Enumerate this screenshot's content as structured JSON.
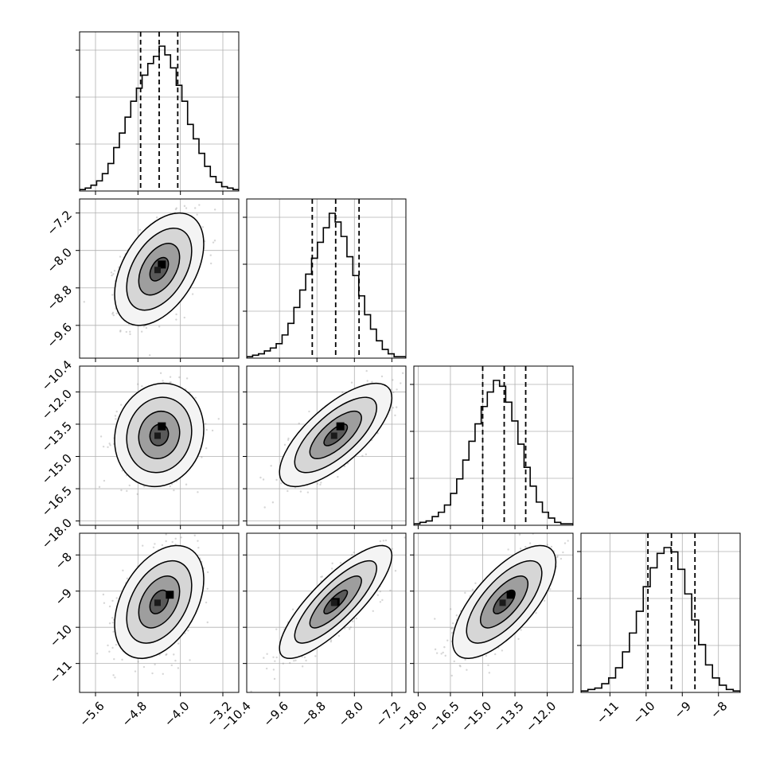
{
  "chart_data": [
    {
      "type": "histogram",
      "panel": "hist-0",
      "x_range": [
        -5.9,
        -2.9
      ],
      "x_ticks": [
        "-5.6",
        "-4.8",
        "-4.0",
        "-3.2"
      ],
      "quantiles": [
        -4.75,
        -4.4,
        -4.05
      ],
      "counts": [
        1,
        2,
        4,
        7,
        12,
        19,
        30,
        40,
        51,
        62,
        71,
        80,
        88,
        93,
        100,
        94,
        85,
        73,
        62,
        46,
        36,
        26,
        17,
        10,
        6,
        3,
        2,
        1
      ],
      "grid": true
    },
    {
      "type": "histogram",
      "panel": "hist-1",
      "x_range": [
        -10.3,
        -6.9
      ],
      "x_ticks": [
        "-10.4",
        "-9.6",
        "-8.8",
        "-8.0",
        "-7.2"
      ],
      "quantiles": [
        -8.9,
        -8.4,
        -7.9
      ],
      "counts": [
        1,
        2,
        3,
        5,
        7,
        10,
        16,
        24,
        35,
        47,
        58,
        69,
        80,
        90,
        100,
        94,
        84,
        70,
        57,
        43,
        30,
        20,
        12,
        6,
        3,
        1,
        1
      ],
      "grid": true
    },
    {
      "type": "histogram",
      "panel": "hist-2",
      "x_range": [
        -18.2,
        -10.8
      ],
      "x_ticks": [
        "-18.0",
        "-16.5",
        "-15.0",
        "-13.5",
        "-12.0"
      ],
      "quantiles": [
        -15.0,
        -14.0,
        -13.0
      ],
      "counts": [
        1,
        2,
        3,
        6,
        9,
        14,
        22,
        32,
        45,
        58,
        70,
        82,
        92,
        100,
        96,
        85,
        72,
        56,
        40,
        27,
        16,
        9,
        5,
        2,
        1,
        1
      ],
      "grid": true
    },
    {
      "type": "histogram",
      "panel": "hist-3",
      "x_range": [
        -11.8,
        -7.4
      ],
      "x_ticks": [
        "-11",
        "-10",
        "-9",
        "-8"
      ],
      "quantiles": [
        -9.95,
        -9.3,
        -8.65
      ],
      "counts": [
        1,
        2,
        3,
        6,
        10,
        17,
        28,
        41,
        56,
        73,
        86,
        96,
        100,
        97,
        85,
        68,
        50,
        33,
        19,
        10,
        5,
        2,
        1
      ],
      "grid": true
    },
    {
      "type": "scatter-contour",
      "panel": "pair-1-0",
      "x_range": [
        -5.9,
        -2.9
      ],
      "y_range": [
        -10.3,
        -6.9
      ],
      "x_ticks": [
        "-5.6",
        "-4.8",
        "-4.0",
        "-3.2"
      ],
      "y_ticks": [
        "-7.2",
        "-8.0",
        "-8.8",
        "-9.6",
        "-10.4"
      ],
      "mean": [
        -4.4,
        -8.4
      ],
      "std": [
        0.35,
        0.5
      ],
      "corr": 0.45,
      "peak": [
        -4.35,
        -8.3
      ],
      "grid": true
    },
    {
      "type": "scatter-contour",
      "panel": "pair-2-0",
      "x_range": [
        -5.9,
        -2.9
      ],
      "y_range": [
        -18.2,
        -10.8
      ],
      "x_ticks": [
        "-5.6",
        "-4.8",
        "-4.0",
        "-3.2"
      ],
      "y_ticks": [
        "-12.0",
        "-13.5",
        "-15.0",
        "-16.5",
        "-18.0"
      ],
      "mean": [
        -4.4,
        -14.0
      ],
      "std": [
        0.35,
        1.0
      ],
      "corr": 0.1,
      "peak": [
        -4.35,
        -13.6
      ],
      "grid": true
    },
    {
      "type": "scatter-contour",
      "panel": "pair-2-1",
      "x_range": [
        -10.3,
        -6.9
      ],
      "y_range": [
        -18.2,
        -10.8
      ],
      "x_ticks": [
        "-10.4",
        "-9.6",
        "-8.8",
        "-8.0",
        "-7.2"
      ],
      "y_ticks": [
        "-12.0",
        "-13.5",
        "-15.0",
        "-16.5",
        "-18.0"
      ],
      "mean": [
        -8.4,
        -14.0
      ],
      "std": [
        0.5,
        1.0
      ],
      "corr": 0.72,
      "peak": [
        -8.3,
        -13.6
      ],
      "grid": true
    },
    {
      "type": "scatter-contour",
      "panel": "pair-3-0",
      "x_range": [
        -5.9,
        -2.9
      ],
      "y_range": [
        -11.8,
        -7.4
      ],
      "x_ticks": [
        "-5.6",
        "-4.8",
        "-4.0",
        "-3.2"
      ],
      "y_ticks": [
        "-8",
        "-9",
        "-10",
        "-11"
      ],
      "mean": [
        -4.4,
        -9.3
      ],
      "std": [
        0.35,
        0.65
      ],
      "corr": 0.4,
      "peak": [
        -4.2,
        -9.1
      ],
      "grid": true
    },
    {
      "type": "scatter-contour",
      "panel": "pair-3-1",
      "x_range": [
        -10.3,
        -6.9
      ],
      "y_range": [
        -11.8,
        -7.4
      ],
      "x_ticks": [
        "-10.4",
        "-9.6",
        "-8.8",
        "-8.0",
        "-7.2"
      ],
      "y_ticks": [
        "-8",
        "-9",
        "-10",
        "-11"
      ],
      "mean": [
        -8.4,
        -9.3
      ],
      "std": [
        0.5,
        0.65
      ],
      "corr": 0.82,
      "peak": [
        -8.4,
        -9.3
      ],
      "grid": true
    },
    {
      "type": "scatter-contour",
      "panel": "pair-3-2",
      "x_range": [
        -18.2,
        -10.8
      ],
      "y_range": [
        -11.8,
        -7.4
      ],
      "x_ticks": [
        "-18.0",
        "-16.5",
        "-15.0",
        "-13.5",
        "-12.0"
      ],
      "y_ticks": [
        "-8",
        "-9",
        "-10",
        "-11"
      ],
      "mean": [
        -14.0,
        -9.3
      ],
      "std": [
        1.0,
        0.65
      ],
      "corr": 0.7,
      "peak": [
        -13.7,
        -9.1
      ],
      "grid": true
    }
  ]
}
